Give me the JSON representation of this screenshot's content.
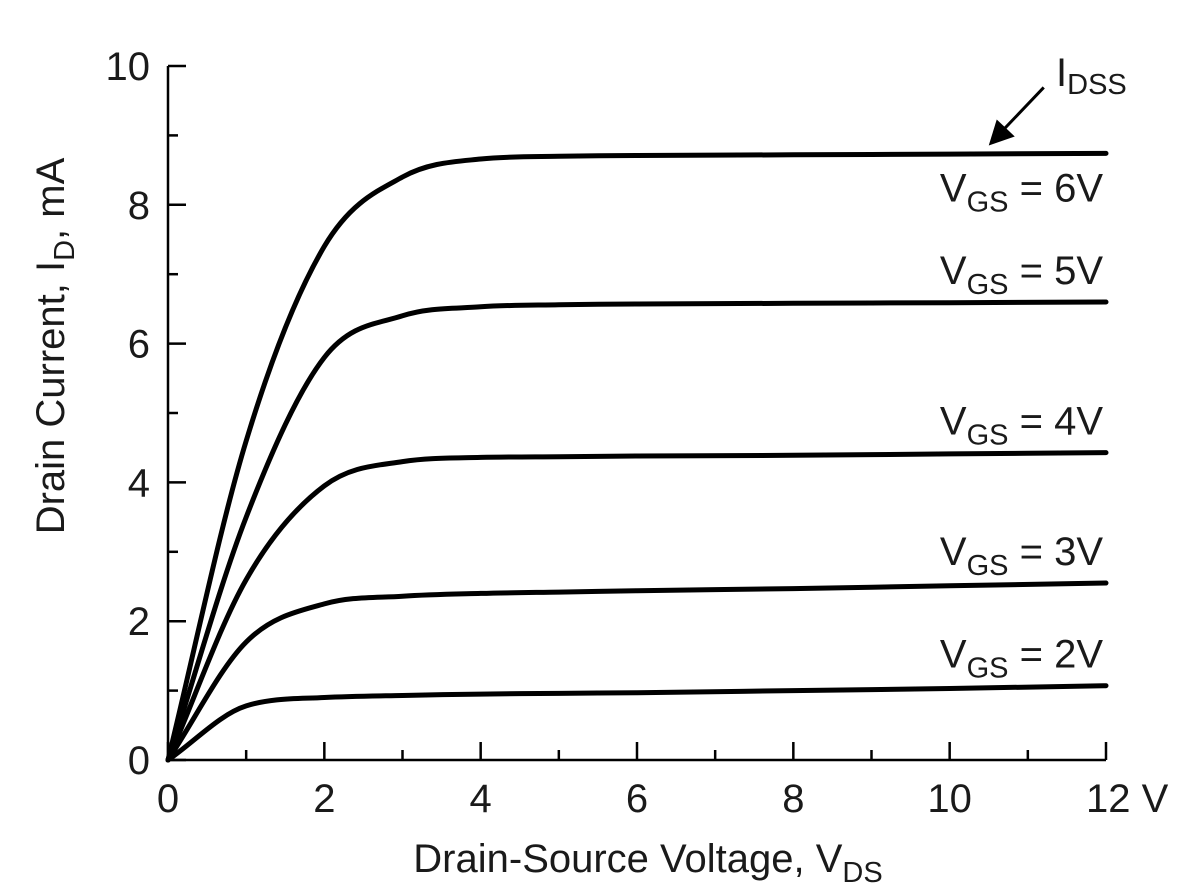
{
  "chart_data": {
    "type": "line",
    "xlabel": "Drain-Source Voltage, V",
    "xlabel_sub": "DS",
    "ylabel": "Drain Current, I",
    "ylabel_sub": "D",
    "ylabel_suffix": ", mA",
    "xlim": [
      0,
      12
    ],
    "ylim": [
      0,
      10
    ],
    "x_ticks": [
      "0",
      "2",
      "4",
      "6",
      "8",
      "10",
      "12 V"
    ],
    "y_ticks": [
      "0",
      "2",
      "4",
      "6",
      "8",
      "10"
    ],
    "grid": false,
    "series": [
      {
        "name": "V_GS = 6V",
        "label_main": "V",
        "label_sub": "GS",
        "label_value": "= 6V",
        "x": [
          0,
          1,
          2,
          3,
          4,
          5,
          6,
          8,
          10,
          12
        ],
        "values": [
          0,
          4.6,
          7.4,
          8.4,
          8.66,
          8.7,
          8.71,
          8.72,
          8.73,
          8.74
        ]
      },
      {
        "name": "V_GS = 5V",
        "label_main": "V",
        "label_sub": "GS",
        "label_value": "= 5V",
        "x": [
          0,
          1,
          2,
          3,
          4,
          5,
          6,
          8,
          10,
          12
        ],
        "values": [
          0,
          3.5,
          5.8,
          6.4,
          6.53,
          6.56,
          6.57,
          6.58,
          6.59,
          6.6
        ]
      },
      {
        "name": "V_GS = 4V",
        "label_main": "V",
        "label_sub": "GS",
        "label_value": "= 4V",
        "x": [
          0,
          1,
          2,
          3,
          4,
          5,
          6,
          8,
          10,
          12
        ],
        "values": [
          0,
          2.6,
          3.95,
          4.3,
          4.36,
          4.37,
          4.38,
          4.39,
          4.41,
          4.43
        ]
      },
      {
        "name": "V_GS = 3V",
        "label_main": "V",
        "label_sub": "GS",
        "label_value": "= 3V",
        "x": [
          0,
          1,
          2,
          3,
          4,
          5,
          6,
          8,
          10,
          12
        ],
        "values": [
          0,
          1.7,
          2.25,
          2.36,
          2.4,
          2.42,
          2.44,
          2.47,
          2.51,
          2.55
        ]
      },
      {
        "name": "V_GS = 2V",
        "label_main": "V",
        "label_sub": "GS",
        "label_value": "= 2V",
        "x": [
          0,
          1,
          2,
          3,
          4,
          5,
          6,
          8,
          10,
          12
        ],
        "values": [
          0,
          0.78,
          0.9,
          0.93,
          0.95,
          0.96,
          0.97,
          1.0,
          1.03,
          1.07
        ]
      }
    ],
    "annotation": {
      "text_main": "I",
      "text_sub": "DSS",
      "points_to_series": "V_GS = 6V",
      "at_x": 10.5
    }
  },
  "style": {
    "line_color": "#000000",
    "text_color": "#1a1a1a",
    "background": "#ffffff"
  }
}
